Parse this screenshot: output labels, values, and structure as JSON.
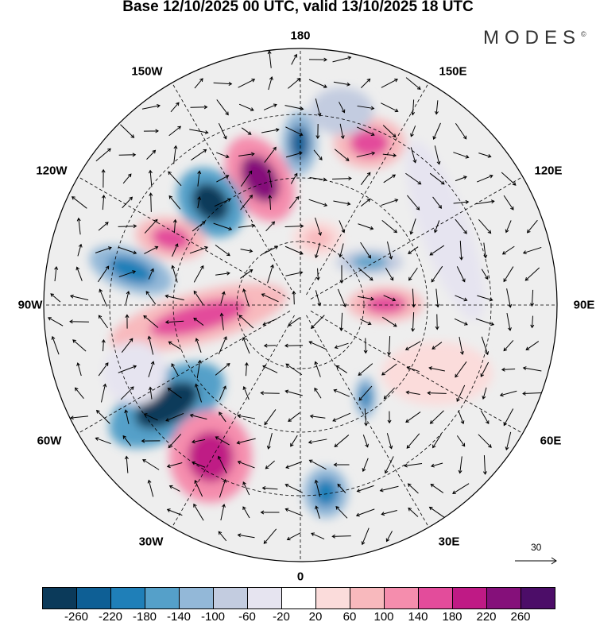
{
  "title": "Base 12/10/2025 00 UTC, valid 13/10/2025 18 UTC",
  "logo": "MODES",
  "logo_mark": "©",
  "lon_labels": {
    "n": "180",
    "s": "0",
    "w": "90W",
    "e": "90E",
    "nw1": "150W",
    "ne1": "150E",
    "nw2": "120W",
    "ne2": "120E",
    "sw2": "60W",
    "se2": "60E",
    "sw1": "30W",
    "se1": "30E"
  },
  "reference_vector": "30",
  "colorbar": {
    "colors": [
      "#0b3a5a",
      "#0e5f95",
      "#1f7fb8",
      "#55a0c9",
      "#93b8d8",
      "#c3cce0",
      "#e6e4f0",
      "#ffffff",
      "#fbdcdb",
      "#f8b9bd",
      "#f58dad",
      "#e34c9b",
      "#bf1a85",
      "#85107a",
      "#4c0d68"
    ],
    "labels": [
      "-260",
      "-220",
      "-180",
      "-140",
      "-100",
      "-60",
      "-20",
      "20",
      "60",
      "100",
      "140",
      "180",
      "220",
      "260"
    ]
  }
}
